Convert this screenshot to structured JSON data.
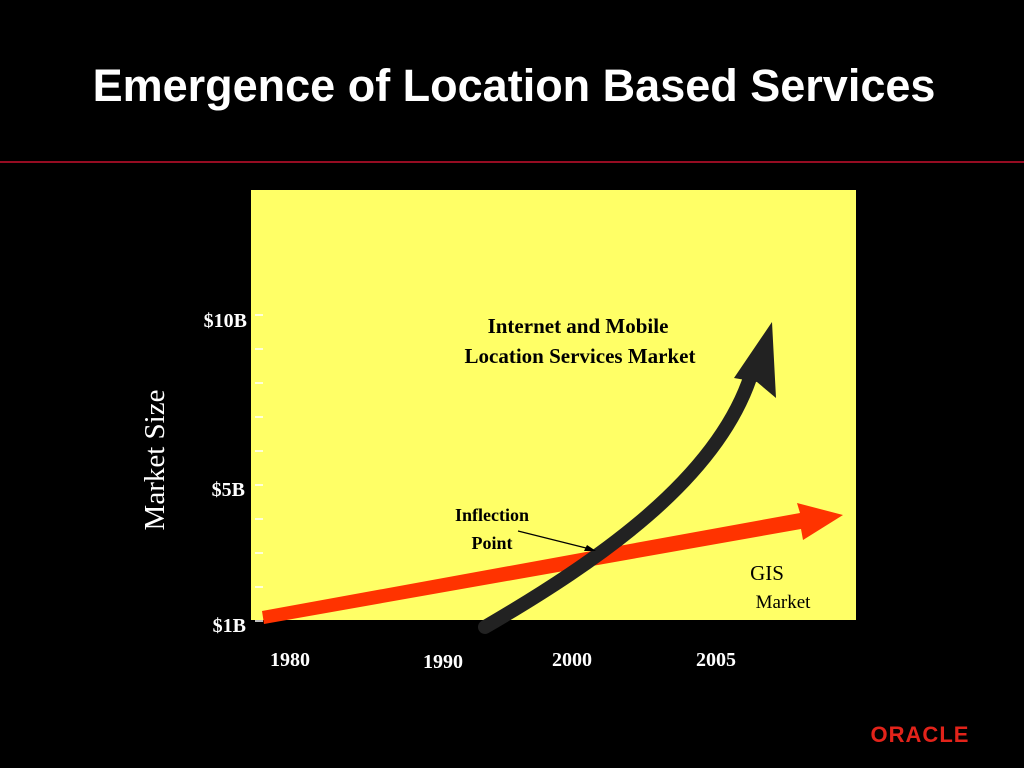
{
  "header": {
    "title": "Emergence of Location Based Services"
  },
  "diagram": {
    "y_axis_title": "Market Size",
    "y_tick_labels": [
      "$10B",
      "$5B",
      "$1B"
    ],
    "x_tick_labels": [
      "1980",
      "1990",
      "2000",
      "2005"
    ],
    "annotations": {
      "internet": [
        "Internet and Mobile",
        "Location Services Market"
      ],
      "inflection": [
        "Inflection",
        "Point"
      ],
      "gis": [
        "GIS",
        "Market"
      ]
    }
  },
  "footer": {
    "logo": "ORACLE"
  }
}
